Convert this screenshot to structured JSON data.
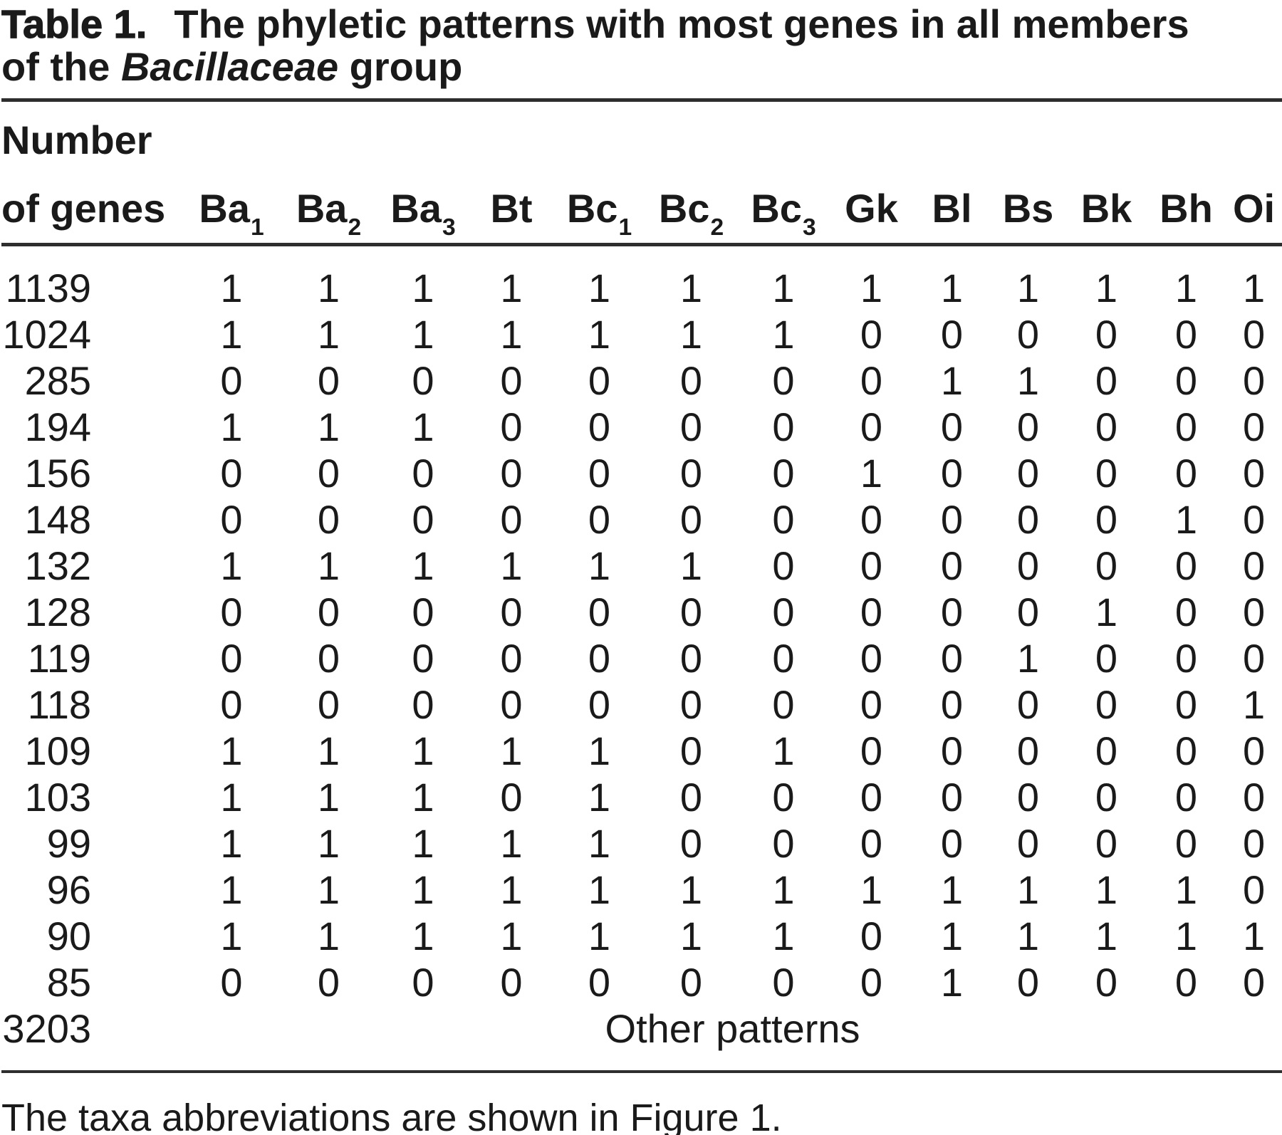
{
  "title": {
    "label": "Table 1.",
    "line1": "The phyletic patterns with most genes in all members",
    "line2_pre": "of the ",
    "line2_italic": "Bacillaceae",
    "line2_post": " group"
  },
  "table": {
    "header_col1_line1": "Number",
    "header_col1_line2": "of genes",
    "columns": [
      {
        "label": "Ba",
        "sub": "1"
      },
      {
        "label": "Ba",
        "sub": "2"
      },
      {
        "label": "Ba",
        "sub": "3"
      },
      {
        "label": "Bt",
        "sub": ""
      },
      {
        "label": "Bc",
        "sub": "1"
      },
      {
        "label": "Bc",
        "sub": "2"
      },
      {
        "label": "Bc",
        "sub": "3"
      },
      {
        "label": "Gk",
        "sub": ""
      },
      {
        "label": "Bl",
        "sub": ""
      },
      {
        "label": "Bs",
        "sub": ""
      },
      {
        "label": "Bk",
        "sub": ""
      },
      {
        "label": "Bh",
        "sub": ""
      },
      {
        "label": "Oi",
        "sub": ""
      }
    ],
    "rows": [
      {
        "genes": "1139",
        "pattern": [
          1,
          1,
          1,
          1,
          1,
          1,
          1,
          1,
          1,
          1,
          1,
          1,
          1
        ]
      },
      {
        "genes": "1024",
        "pattern": [
          1,
          1,
          1,
          1,
          1,
          1,
          1,
          0,
          0,
          0,
          0,
          0,
          0
        ]
      },
      {
        "genes": "285",
        "pattern": [
          0,
          0,
          0,
          0,
          0,
          0,
          0,
          0,
          1,
          1,
          0,
          0,
          0
        ]
      },
      {
        "genes": "194",
        "pattern": [
          1,
          1,
          1,
          0,
          0,
          0,
          0,
          0,
          0,
          0,
          0,
          0,
          0
        ]
      },
      {
        "genes": "156",
        "pattern": [
          0,
          0,
          0,
          0,
          0,
          0,
          0,
          1,
          0,
          0,
          0,
          0,
          0
        ]
      },
      {
        "genes": "148",
        "pattern": [
          0,
          0,
          0,
          0,
          0,
          0,
          0,
          0,
          0,
          0,
          0,
          1,
          0
        ]
      },
      {
        "genes": "132",
        "pattern": [
          1,
          1,
          1,
          1,
          1,
          1,
          0,
          0,
          0,
          0,
          0,
          0,
          0
        ]
      },
      {
        "genes": "128",
        "pattern": [
          0,
          0,
          0,
          0,
          0,
          0,
          0,
          0,
          0,
          0,
          1,
          0,
          0
        ]
      },
      {
        "genes": "119",
        "pattern": [
          0,
          0,
          0,
          0,
          0,
          0,
          0,
          0,
          0,
          1,
          0,
          0,
          0
        ]
      },
      {
        "genes": "118",
        "pattern": [
          0,
          0,
          0,
          0,
          0,
          0,
          0,
          0,
          0,
          0,
          0,
          0,
          1
        ]
      },
      {
        "genes": "109",
        "pattern": [
          1,
          1,
          1,
          1,
          1,
          0,
          1,
          0,
          0,
          0,
          0,
          0,
          0
        ]
      },
      {
        "genes": "103",
        "pattern": [
          1,
          1,
          1,
          0,
          1,
          0,
          0,
          0,
          0,
          0,
          0,
          0,
          0
        ]
      },
      {
        "genes": "99",
        "pattern": [
          1,
          1,
          1,
          1,
          1,
          0,
          0,
          0,
          0,
          0,
          0,
          0,
          0
        ]
      },
      {
        "genes": "96",
        "pattern": [
          1,
          1,
          1,
          1,
          1,
          1,
          1,
          1,
          1,
          1,
          1,
          1,
          0
        ]
      },
      {
        "genes": "90",
        "pattern": [
          1,
          1,
          1,
          1,
          1,
          1,
          1,
          0,
          1,
          1,
          1,
          1,
          1
        ]
      },
      {
        "genes": "85",
        "pattern": [
          0,
          0,
          0,
          0,
          0,
          0,
          0,
          0,
          1,
          0,
          0,
          0,
          0
        ]
      }
    ],
    "other_row": {
      "genes": "3203",
      "label": "Other patterns"
    }
  },
  "footnote": "The taxa abbreviations are shown in Figure 1."
}
